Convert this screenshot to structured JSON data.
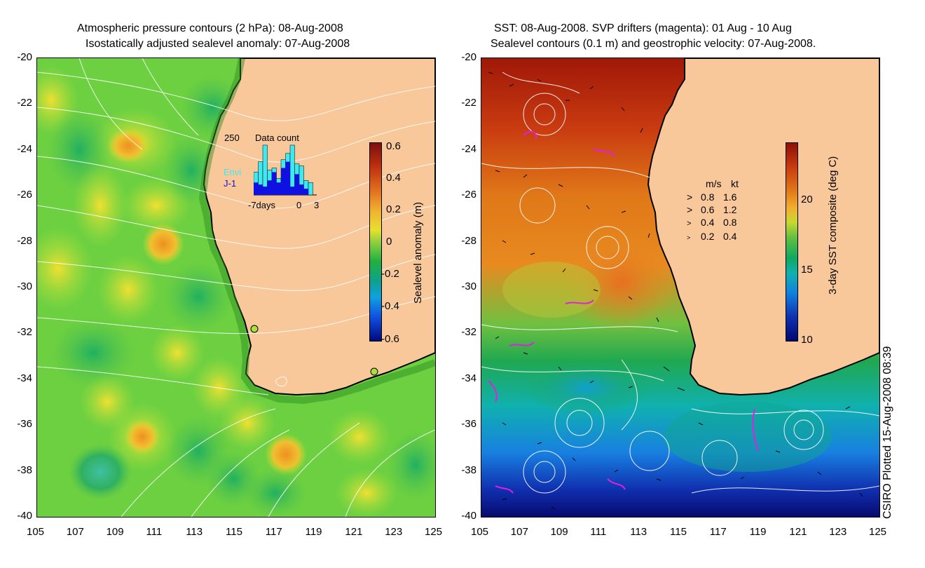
{
  "left_panel": {
    "title_line1": "Atmospheric pressure contours (2 hPa): 08-Aug-2008",
    "title_line2": "Isostatically adjusted sealevel anomaly: 07-Aug-2008",
    "colorbar_label": "Sealevel anomaly (m)",
    "colorbar_ticks": [
      "0.6",
      "0.4",
      "0.2",
      "0",
      "-0.2",
      "-0.4",
      "-0.6"
    ],
    "inset": {
      "title": "Data count",
      "ymax_label": "250",
      "series_labels": [
        "Envi",
        "J-1"
      ],
      "series_colors": [
        "#40e8f0",
        "#1010e0"
      ],
      "x_labels": [
        "-7days",
        "0",
        "3"
      ],
      "envi_counts": [
        110,
        160,
        240,
        120,
        130,
        80,
        170,
        200,
        240,
        150,
        140,
        70,
        60
      ],
      "j1_counts": [
        60,
        50,
        40,
        70,
        110,
        60,
        130,
        160,
        40,
        100,
        50,
        30,
        0
      ]
    }
  },
  "right_panel": {
    "title_line1": "SST: 08-Aug-2008. SVP drifters (magenta): 01 Aug - 10 Aug",
    "title_line2": "Sealevel contours (0.1 m) and geostrophic velocity: 07-Aug-2008.",
    "colorbar_label": "3-day SST composite (deg C)",
    "colorbar_ticks": [
      "20",
      "15",
      "10"
    ],
    "velocity_legend": {
      "header_ms": "m/s",
      "header_kt": "kt",
      "rows": [
        {
          "ms": "0.8",
          "kt": "1.6"
        },
        {
          "ms": "0.6",
          "kt": "1.2"
        },
        {
          "ms": "0.4",
          "kt": "0.8"
        },
        {
          "ms": "0.2",
          "kt": "0.4"
        }
      ]
    }
  },
  "y_ticks": [
    "-20",
    "-22",
    "-24",
    "-26",
    "-28",
    "-30",
    "-32",
    "-34",
    "-36",
    "-38",
    "-40"
  ],
  "x_ticks": [
    "105",
    "107",
    "109",
    "111",
    "113",
    "115",
    "117",
    "119",
    "121",
    "123",
    "125"
  ],
  "credit": "CSIRO Plotted 15-Aug-2008 08:39",
  "colors": {
    "land": "#f8c89a",
    "coastline": "#000000",
    "contour": "#ffffff",
    "drifter": "#e020e0"
  }
}
